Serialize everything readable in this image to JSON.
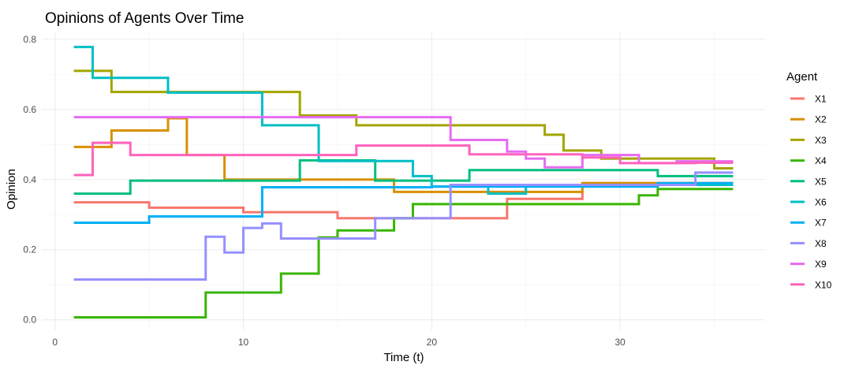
{
  "chart_data": {
    "type": "line",
    "step": true,
    "title": "Opinions of Agents Over Time",
    "xlabel": "Time (t)",
    "ylabel": "Opinion",
    "xlim": [
      -0.7,
      37.7
    ],
    "ylim": [
      -0.03,
      0.82
    ],
    "x_ticks": [
      0,
      10,
      20,
      30
    ],
    "y_ticks": [
      0.0,
      0.2,
      0.4,
      0.6,
      0.8
    ],
    "x_tick_labels": [
      "0",
      "10",
      "20",
      "30"
    ],
    "y_tick_labels": [
      "0.0",
      "0.2",
      "0.4",
      "0.6",
      "0.8"
    ],
    "grid": true,
    "legend_title": "Agent",
    "legend_position": "right",
    "series": [
      {
        "name": "X1",
        "color": "#F8766D",
        "x": [
          1,
          5,
          10,
          15,
          24,
          28,
          36
        ],
        "y": [
          0.335,
          0.32,
          0.307,
          0.29,
          0.345,
          0.39,
          0.39
        ]
      },
      {
        "name": "X2",
        "color": "#D89000",
        "x": [
          1,
          3,
          6,
          7,
          9,
          14,
          18,
          24,
          28,
          36
        ],
        "y": [
          0.493,
          0.54,
          0.575,
          0.47,
          0.4,
          0.4,
          0.365,
          0.365,
          0.39,
          0.39
        ]
      },
      {
        "name": "X3",
        "color": "#A3A500",
        "x": [
          1,
          3,
          13,
          16,
          26,
          27,
          29,
          35,
          36
        ],
        "y": [
          0.71,
          0.65,
          0.583,
          0.555,
          0.528,
          0.483,
          0.46,
          0.432,
          0.432
        ]
      },
      {
        "name": "X4",
        "color": "#39B600",
        "x": [
          1,
          8,
          12,
          14,
          15,
          18,
          19,
          31,
          32,
          36
        ],
        "y": [
          0.007,
          0.078,
          0.132,
          0.235,
          0.255,
          0.29,
          0.33,
          0.355,
          0.373,
          0.373
        ]
      },
      {
        "name": "X5",
        "color": "#00BF7D",
        "x": [
          1,
          4,
          13,
          17,
          22,
          32,
          36
        ],
        "y": [
          0.36,
          0.397,
          0.455,
          0.397,
          0.427,
          0.41,
          0.41
        ]
      },
      {
        "name": "X6",
        "color": "#00BFC4",
        "x": [
          1,
          2,
          6,
          11,
          14,
          19,
          20,
          23,
          25,
          36
        ],
        "y": [
          0.778,
          0.69,
          0.648,
          0.555,
          0.453,
          0.41,
          0.38,
          0.36,
          0.385,
          0.385
        ]
      },
      {
        "name": "X7",
        "color": "#00B0F6",
        "x": [
          1,
          5,
          11,
          20,
          32,
          36
        ],
        "y": [
          0.277,
          0.295,
          0.378,
          0.38,
          0.39,
          0.39
        ]
      },
      {
        "name": "X8",
        "color": "#9590FF",
        "x": [
          1,
          8,
          9,
          10,
          11,
          12,
          17,
          21,
          34,
          36
        ],
        "y": [
          0.115,
          0.237,
          0.192,
          0.262,
          0.275,
          0.232,
          0.29,
          0.385,
          0.42,
          0.42
        ]
      },
      {
        "name": "X9",
        "color": "#E76BF3",
        "x": [
          1,
          21,
          24,
          25,
          26,
          28,
          31,
          33,
          36
        ],
        "y": [
          0.578,
          0.513,
          0.48,
          0.46,
          0.435,
          0.47,
          0.447,
          0.452,
          0.452
        ]
      },
      {
        "name": "X10",
        "color": "#FF62BC",
        "x": [
          1,
          2,
          4,
          16,
          22,
          28,
          30,
          34,
          36
        ],
        "y": [
          0.413,
          0.505,
          0.47,
          0.497,
          0.472,
          0.463,
          0.447,
          0.448,
          0.448
        ]
      }
    ]
  }
}
